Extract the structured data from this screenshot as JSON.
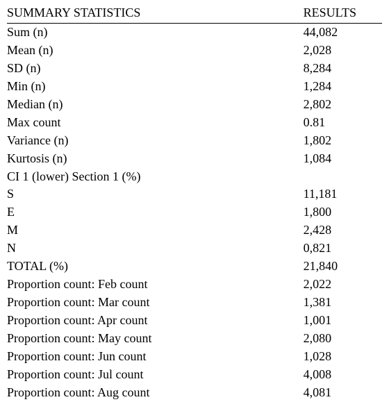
{
  "headers": {
    "stat": "SUMMARY STATISTICS",
    "val": "RESULTS"
  },
  "rows": [
    {
      "stat": "Sum (n)",
      "val": "44,082"
    },
    {
      "stat": "Mean (n)",
      "val": "2,028"
    },
    {
      "stat": "SD (n)",
      "val": "8,284"
    },
    {
      "stat": "Min (n)",
      "val": "1,284"
    },
    {
      "stat": "Median (n)",
      "val": "2,802"
    },
    {
      "stat": "Max count",
      "val": "0.81"
    },
    {
      "stat": "Variance (n)",
      "val": "1,802"
    },
    {
      "stat": "Kurtosis (n)",
      "val": "1,084"
    },
    {
      "stat": "CI 1 (lower) Section 1 (%)",
      "val": ""
    },
    {
      "stat": "S",
      "val": "11,181"
    },
    {
      "stat": "E",
      "val": "1,800"
    },
    {
      "stat": "M",
      "val": "2,428"
    },
    {
      "stat": "N",
      "val": "0,821"
    },
    {
      "stat": "TOTAL (%)",
      "val": "21,840"
    },
    {
      "stat": "Proportion count: Feb count",
      "val": "2,022"
    },
    {
      "stat": "Proportion count: Mar count",
      "val": "1,381"
    },
    {
      "stat": "Proportion count: Apr count",
      "val": "1,001"
    },
    {
      "stat": "Proportion count: May count",
      "val": "2,080"
    },
    {
      "stat": "Proportion count: Jun count",
      "val": "1,028"
    },
    {
      "stat": "Proportion count: Jul count",
      "val": "4,008"
    },
    {
      "stat": "Proportion count: Aug count",
      "val": "4,081"
    }
  ],
  "style": {
    "font_family": "Times New Roman",
    "font_size_pt": 14,
    "text_color": "#000000",
    "background_color": "#ffffff",
    "rule_color": "#000000",
    "col_widths_pct": [
      79,
      21
    ]
  }
}
